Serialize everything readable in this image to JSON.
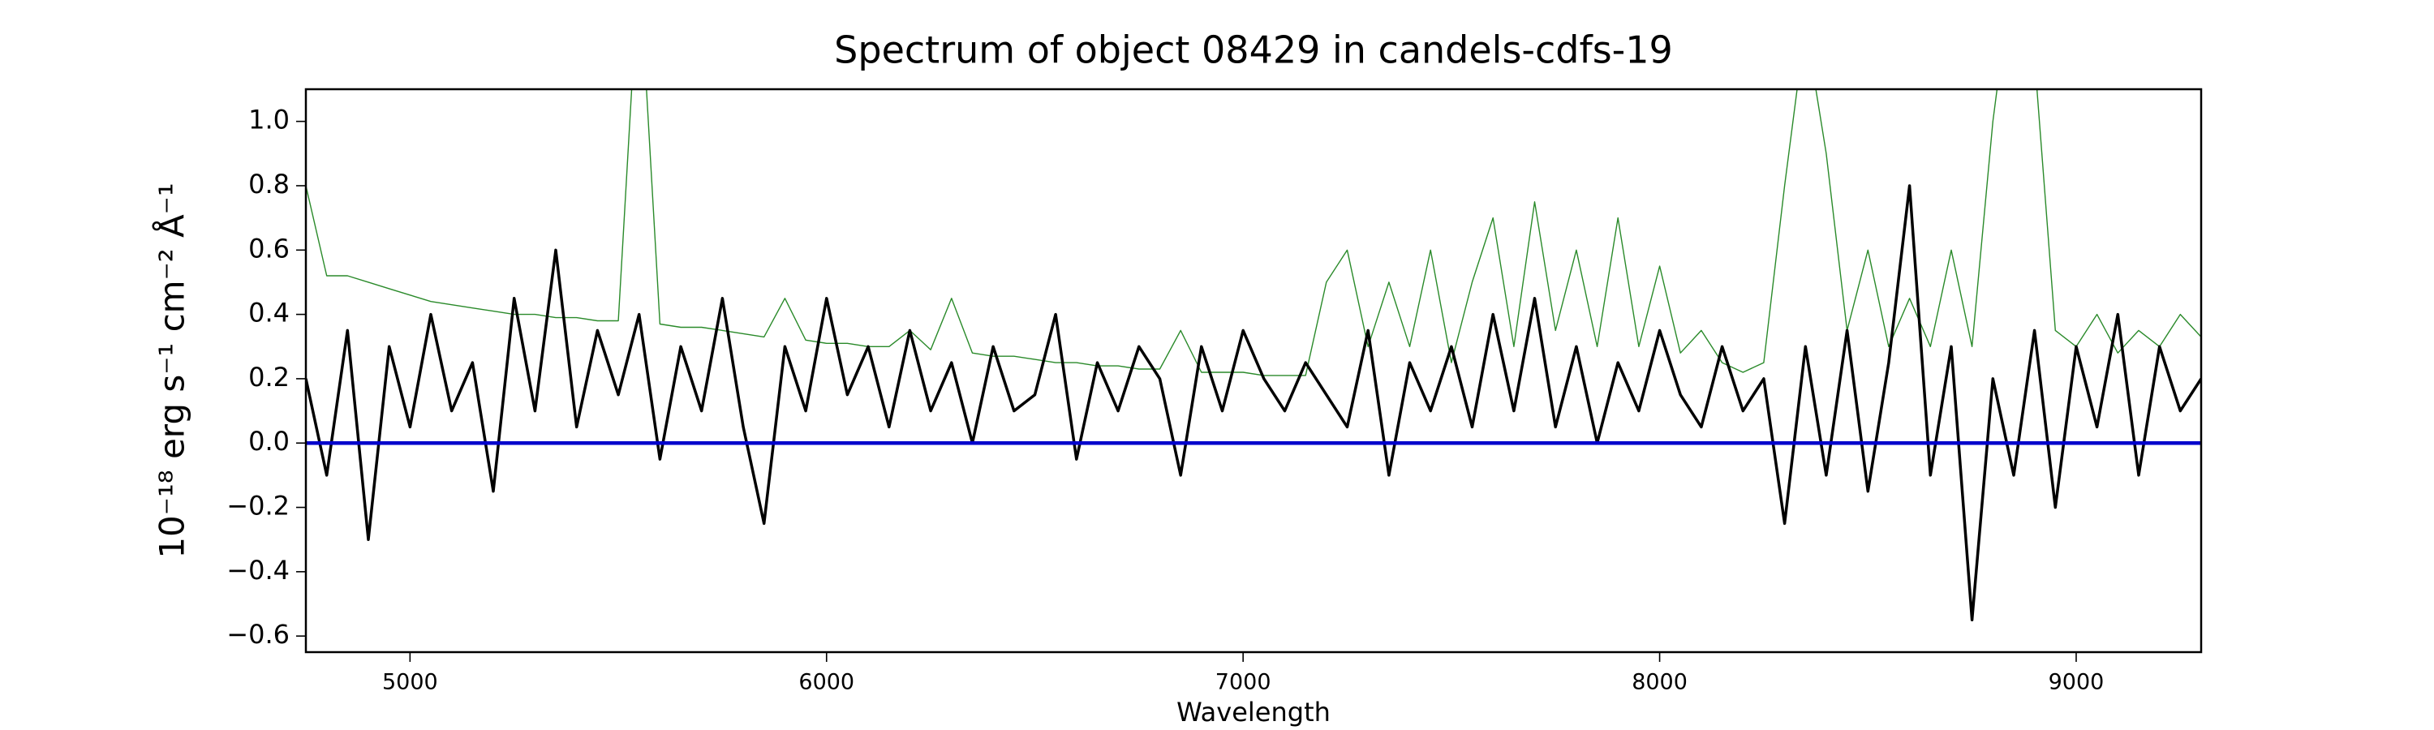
{
  "chart_data": {
    "type": "line",
    "title": "Spectrum of object 08429 in candels-cdfs-19",
    "xlabel": "Wavelength",
    "ylabel": "10⁻¹⁸ erg s⁻¹ cm⁻² Å⁻¹",
    "xlim": [
      4750,
      9300
    ],
    "ylim": [
      -0.65,
      1.1
    ],
    "xticks": [
      5000,
      6000,
      7000,
      8000,
      9000
    ],
    "yticks": [
      {
        "value": -0.6,
        "label": "−0.6"
      },
      {
        "value": -0.4,
        "label": "−0.4"
      },
      {
        "value": -0.2,
        "label": "−0.2"
      },
      {
        "value": 0,
        "label": "0.0"
      },
      {
        "value": 0.2,
        "label": "0.2"
      },
      {
        "value": 0.4,
        "label": "0.4"
      },
      {
        "value": 0.6,
        "label": "0.6"
      },
      {
        "value": 0.8,
        "label": "0.8"
      },
      {
        "value": 1.0,
        "label": "1.0"
      }
    ],
    "x": [
      4750,
      4800,
      4850,
      4900,
      4950,
      5000,
      5050,
      5100,
      5150,
      5200,
      5250,
      5300,
      5350,
      5400,
      5450,
      5500,
      5550,
      5600,
      5650,
      5700,
      5750,
      5800,
      5850,
      5900,
      5950,
      6000,
      6050,
      6100,
      6150,
      6200,
      6250,
      6300,
      6350,
      6400,
      6450,
      6500,
      6550,
      6600,
      6650,
      6700,
      6750,
      6800,
      6850,
      6900,
      6950,
      7000,
      7050,
      7100,
      7150,
      7200,
      7250,
      7300,
      7350,
      7400,
      7450,
      7500,
      7550,
      7600,
      7650,
      7700,
      7750,
      7800,
      7850,
      7900,
      7950,
      8000,
      8050,
      8100,
      8150,
      8200,
      8250,
      8300,
      8350,
      8400,
      8450,
      8500,
      8550,
      8600,
      8650,
      8700,
      8750,
      8800,
      8850,
      8900,
      8950,
      9000,
      9050,
      9100,
      9150,
      9200,
      9250,
      9300
    ],
    "series": [
      {
        "color": "#2a8a2a",
        "width": 1.4,
        "values": [
          0.8,
          0.52,
          0.52,
          0.5,
          0.48,
          0.46,
          0.44,
          0.43,
          0.42,
          0.41,
          0.4,
          0.4,
          0.39,
          0.39,
          0.38,
          0.38,
          1.5,
          0.37,
          0.36,
          0.36,
          0.35,
          0.34,
          0.33,
          0.45,
          0.32,
          0.31,
          0.31,
          0.3,
          0.3,
          0.35,
          0.29,
          0.45,
          0.28,
          0.27,
          0.27,
          0.26,
          0.25,
          0.25,
          0.24,
          0.24,
          0.23,
          0.23,
          0.35,
          0.22,
          0.22,
          0.22,
          0.21,
          0.21,
          0.21,
          0.5,
          0.6,
          0.3,
          0.5,
          0.3,
          0.6,
          0.25,
          0.5,
          0.7,
          0.3,
          0.75,
          0.35,
          0.6,
          0.3,
          0.7,
          0.3,
          0.55,
          0.28,
          0.35,
          0.25,
          0.22,
          0.25,
          0.8,
          1.3,
          0.9,
          0.35,
          0.6,
          0.3,
          0.45,
          0.3,
          0.6,
          0.3,
          1.0,
          1.5,
          1.2,
          0.35,
          0.3,
          0.4,
          0.28,
          0.35,
          0.3,
          0.4,
          0.33
        ]
      },
      {
        "color": "#000000",
        "width": 3.5,
        "values": [
          0.2,
          -0.1,
          0.35,
          -0.3,
          0.3,
          0.05,
          0.4,
          0.1,
          0.25,
          -0.15,
          0.45,
          0.1,
          0.6,
          0.05,
          0.35,
          0.15,
          0.4,
          -0.05,
          0.3,
          0.1,
          0.45,
          0.05,
          -0.25,
          0.3,
          0.1,
          0.45,
          0.15,
          0.3,
          0.05,
          0.35,
          0.1,
          0.25,
          0.0,
          0.3,
          0.1,
          0.15,
          0.4,
          -0.05,
          0.25,
          0.1,
          0.3,
          0.2,
          -0.1,
          0.3,
          0.1,
          0.35,
          0.2,
          0.1,
          0.25,
          0.15,
          0.05,
          0.35,
          -0.1,
          0.25,
          0.1,
          0.3,
          0.05,
          0.4,
          0.1,
          0.45,
          0.05,
          0.3,
          0.0,
          0.25,
          0.1,
          0.35,
          0.15,
          0.05,
          0.3,
          0.1,
          0.2,
          -0.25,
          0.3,
          -0.1,
          0.35,
          -0.15,
          0.25,
          0.8,
          -0.1,
          0.3,
          -0.55,
          0.2,
          -0.1,
          0.35,
          -0.2,
          0.3,
          0.05,
          0.4,
          -0.1,
          0.3,
          0.1,
          0.2
        ]
      },
      {
        "color": "#0000cc",
        "width": 4.5,
        "x": [
          4750,
          9300
        ],
        "values": [
          0,
          0
        ]
      }
    ]
  }
}
